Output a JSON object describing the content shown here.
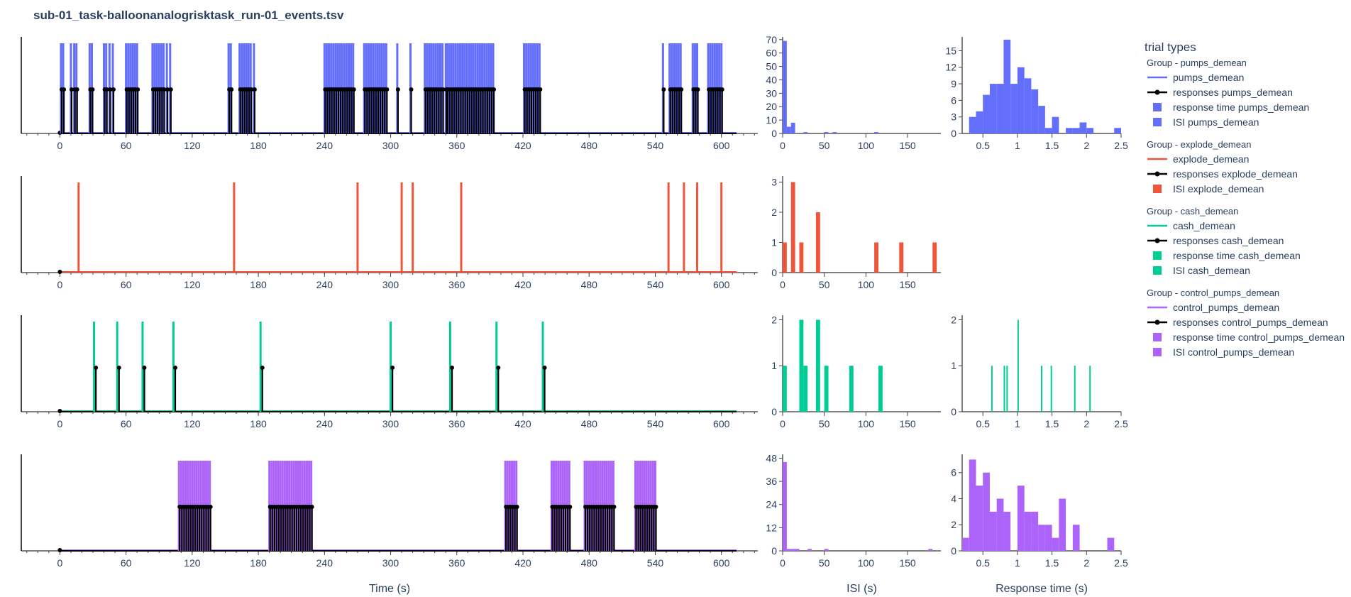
{
  "title": "sub-01_task-balloonanalogrisktask_run-01_events.tsv",
  "legend": {
    "title": "trial types",
    "groups": [
      {
        "label": "Group - pumps_demean",
        "items": [
          {
            "kind": "line",
            "label": "pumps_demean",
            "color": "#636efa"
          },
          {
            "kind": "resp",
            "label": "responses pumps_demean",
            "color": "#000000"
          },
          {
            "kind": "box",
            "label": "response time pumps_demean",
            "color": "#636efa"
          },
          {
            "kind": "box",
            "label": "ISI pumps_demean",
            "color": "#636efa"
          }
        ]
      },
      {
        "label": "Group - explode_demean",
        "items": [
          {
            "kind": "line",
            "label": "explode_demean",
            "color": "#ef553b"
          },
          {
            "kind": "resp",
            "label": "responses explode_demean",
            "color": "#000000"
          },
          {
            "kind": "box",
            "label": "ISI explode_demean",
            "color": "#ef553b"
          }
        ]
      },
      {
        "label": "Group - cash_demean",
        "items": [
          {
            "kind": "line",
            "label": "cash_demean",
            "color": "#00cc96"
          },
          {
            "kind": "resp",
            "label": "responses cash_demean",
            "color": "#000000"
          },
          {
            "kind": "box",
            "label": "response time cash_demean",
            "color": "#00cc96"
          },
          {
            "kind": "box",
            "label": "ISI cash_demean",
            "color": "#00cc96"
          }
        ]
      },
      {
        "label": "Group - control_pumps_demean",
        "items": [
          {
            "kind": "line",
            "label": "control_pumps_demean",
            "color": "#ab63fa"
          },
          {
            "kind": "resp",
            "label": "responses control_pumps_demean",
            "color": "#000000"
          },
          {
            "kind": "box",
            "label": "response time control_pumps_demean",
            "color": "#ab63fa"
          },
          {
            "kind": "box",
            "label": "ISI control_pumps_demean",
            "color": "#ab63fa"
          }
        ]
      }
    ]
  },
  "chart_data": [
    {
      "type": "bar",
      "panel": "timeline",
      "row": 0,
      "name": "pumps_demean",
      "color": "#636efa",
      "xlabel": "",
      "xlim": [
        -35,
        633
      ],
      "xticks": [
        0,
        60,
        120,
        180,
        240,
        300,
        360,
        420,
        480,
        540,
        600
      ],
      "onsets": [
        1,
        3,
        10,
        13,
        15,
        27,
        29,
        40,
        42,
        45,
        48,
        60,
        62,
        64,
        66,
        68,
        70,
        84,
        86,
        88,
        90,
        92,
        94,
        97,
        100,
        153,
        155,
        163,
        165,
        167,
        169,
        171,
        173,
        176,
        240,
        242,
        244,
        246,
        248,
        250,
        252,
        254,
        256,
        258,
        260,
        262,
        264,
        266,
        276,
        278,
        280,
        282,
        284,
        286,
        288,
        290,
        292,
        294,
        296,
        306,
        318,
        331,
        333,
        335,
        337,
        339,
        341,
        343,
        345,
        347,
        350,
        351,
        353,
        355,
        357,
        359,
        361,
        363,
        365,
        367,
        369,
        371,
        373,
        375,
        377,
        379,
        381,
        383,
        385,
        387,
        389,
        391,
        393,
        421,
        423,
        425,
        427,
        429,
        431,
        433,
        435,
        547,
        553,
        555,
        557,
        559,
        561,
        563,
        574,
        576,
        578,
        588,
        590,
        592,
        594,
        596,
        598,
        600
      ],
      "responses": [
        1,
        3,
        10,
        13,
        15,
        27,
        29,
        40,
        42,
        45,
        48,
        60,
        62,
        64,
        66,
        68,
        70,
        84,
        86,
        88,
        90,
        92,
        94,
        97,
        100,
        153,
        155,
        163,
        165,
        167,
        169,
        171,
        173,
        176,
        240,
        242,
        244,
        246,
        248,
        250,
        252,
        254,
        256,
        258,
        260,
        262,
        264,
        266,
        276,
        278,
        280,
        282,
        284,
        286,
        288,
        290,
        292,
        294,
        296,
        306,
        318,
        331,
        333,
        335,
        337,
        339,
        341,
        343,
        345,
        347,
        350,
        351,
        353,
        355,
        357,
        359,
        361,
        363,
        365,
        367,
        369,
        371,
        373,
        375,
        377,
        379,
        381,
        383,
        385,
        387,
        389,
        391,
        393,
        421,
        423,
        425,
        427,
        429,
        431,
        433,
        435,
        547,
        553,
        555,
        557,
        559,
        561,
        563,
        574,
        576,
        578,
        588,
        590,
        592,
        594,
        596,
        598,
        600
      ]
    },
    {
      "type": "bar",
      "panel": "timeline",
      "row": 1,
      "name": "explode_demean",
      "color": "#ef553b",
      "xlabel": "",
      "xlim": [
        -35,
        633
      ],
      "xticks": [
        0,
        60,
        120,
        180,
        240,
        300,
        360,
        420,
        480,
        540,
        600
      ],
      "onsets": [
        17,
        158,
        270,
        310,
        320,
        364,
        552,
        566,
        578,
        600
      ],
      "responses": []
    },
    {
      "type": "bar",
      "panel": "timeline",
      "row": 2,
      "name": "cash_demean",
      "color": "#00cc96",
      "xlabel": "",
      "xlim": [
        -35,
        633
      ],
      "xticks": [
        0,
        60,
        120,
        180,
        240,
        300,
        360,
        420,
        480,
        540,
        600
      ],
      "onsets": [
        31,
        52,
        75,
        103,
        182,
        300,
        354,
        396,
        438
      ],
      "responses": [
        32,
        53,
        76,
        104,
        183,
        301,
        355,
        397,
        439
      ]
    },
    {
      "type": "bar",
      "panel": "timeline",
      "row": 3,
      "name": "control_pumps_demean",
      "color": "#ab63fa",
      "xlabel": "Time (s)",
      "xlim": [
        -35,
        633
      ],
      "xticks": [
        0,
        60,
        120,
        180,
        240,
        300,
        360,
        420,
        480,
        540,
        600
      ],
      "onsets": [
        108,
        110,
        112,
        114,
        116,
        118,
        120,
        122,
        124,
        126,
        128,
        130,
        132,
        134,
        136,
        190,
        192,
        194,
        196,
        198,
        200,
        202,
        204,
        206,
        208,
        210,
        212,
        214,
        216,
        218,
        220,
        222,
        224,
        226,
        228,
        404,
        406,
        408,
        410,
        412,
        414,
        446,
        448,
        450,
        452,
        454,
        456,
        458,
        460,
        462,
        476,
        478,
        480,
        482,
        484,
        486,
        488,
        490,
        492,
        494,
        496,
        498,
        500,
        502,
        522,
        524,
        526,
        528,
        530,
        532,
        534,
        536,
        538,
        540
      ],
      "responses": [
        108,
        110,
        112,
        114,
        116,
        118,
        120,
        122,
        124,
        126,
        128,
        130,
        132,
        134,
        136,
        190,
        192,
        194,
        196,
        198,
        200,
        202,
        204,
        206,
        208,
        210,
        212,
        214,
        216,
        218,
        220,
        222,
        224,
        226,
        228,
        404,
        406,
        408,
        410,
        412,
        414,
        446,
        448,
        450,
        452,
        454,
        456,
        458,
        460,
        462,
        476,
        478,
        480,
        482,
        484,
        486,
        488,
        490,
        492,
        494,
        496,
        498,
        500,
        502,
        522,
        524,
        526,
        528,
        530,
        532,
        534,
        536,
        538,
        540
      ]
    },
    {
      "type": "bar",
      "panel": "isi",
      "row": 0,
      "name": "ISI pumps_demean",
      "color": "#636efa",
      "xlabel": "",
      "xlim": [
        0,
        190
      ],
      "xticks": [
        0,
        50,
        100,
        150
      ],
      "ylim": [
        0,
        72
      ],
      "yticks": [
        0,
        10,
        20,
        30,
        40,
        50,
        60,
        70
      ],
      "bins": [
        [
          0,
          5,
          69
        ],
        [
          5,
          10,
          5
        ],
        [
          10,
          15,
          8
        ],
        [
          25,
          30,
          1
        ],
        [
          50,
          55,
          1
        ],
        [
          60,
          65,
          1
        ],
        [
          110,
          115,
          1
        ]
      ]
    },
    {
      "type": "bar",
      "panel": "isi",
      "row": 1,
      "name": "ISI explode_demean",
      "color": "#ef553b",
      "xlabel": "",
      "xlim": [
        0,
        190
      ],
      "xticks": [
        0,
        50,
        100,
        150
      ],
      "ylim": [
        0,
        3.2
      ],
      "yticks": [
        0,
        1,
        2,
        3
      ],
      "bins": [
        [
          0,
          5,
          1
        ],
        [
          10,
          15,
          3
        ],
        [
          20,
          25,
          1
        ],
        [
          40,
          45,
          2
        ],
        [
          110,
          115,
          1
        ],
        [
          140,
          145,
          1
        ],
        [
          180,
          185,
          1
        ]
      ]
    },
    {
      "type": "bar",
      "panel": "isi",
      "row": 2,
      "name": "ISI cash_demean",
      "color": "#00cc96",
      "xlabel": "",
      "xlim": [
        0,
        190
      ],
      "xticks": [
        0,
        50,
        100,
        150
      ],
      "ylim": [
        0,
        2.1
      ],
      "yticks": [
        0,
        1,
        2
      ],
      "bins": [
        [
          0,
          5,
          1
        ],
        [
          20,
          25,
          2
        ],
        [
          25,
          30,
          1
        ],
        [
          40,
          45,
          2
        ],
        [
          50,
          55,
          1
        ],
        [
          80,
          85,
          1
        ],
        [
          115,
          120,
          1
        ]
      ]
    },
    {
      "type": "bar",
      "panel": "isi",
      "row": 3,
      "name": "ISI control_pumps_demean",
      "color": "#ab63fa",
      "xlabel": "ISI (s)",
      "xlim": [
        0,
        190
      ],
      "xticks": [
        0,
        50,
        100,
        150
      ],
      "ylim": [
        0,
        50
      ],
      "yticks": [
        0,
        12,
        24,
        36,
        48
      ],
      "bins": [
        [
          0,
          5,
          46
        ],
        [
          5,
          10,
          1
        ],
        [
          10,
          15,
          1
        ],
        [
          15,
          20,
          1
        ],
        [
          30,
          35,
          1
        ],
        [
          50,
          55,
          1
        ],
        [
          175,
          180,
          1
        ]
      ]
    },
    {
      "type": "bar",
      "panel": "rt",
      "row": 0,
      "name": "response time pumps_demean",
      "color": "#636efa",
      "xlabel": "",
      "xlim": [
        0.2,
        2.5
      ],
      "xticks": [
        0.5,
        1,
        1.5,
        2,
        2.5
      ],
      "ylim": [
        0,
        17.5
      ],
      "yticks": [
        0,
        3,
        6,
        9,
        12,
        15
      ],
      "bins": [
        [
          0.3,
          0.4,
          3
        ],
        [
          0.4,
          0.5,
          4
        ],
        [
          0.5,
          0.6,
          7
        ],
        [
          0.6,
          0.7,
          9
        ],
        [
          0.7,
          0.8,
          9
        ],
        [
          0.8,
          0.9,
          17
        ],
        [
          0.9,
          1.0,
          9
        ],
        [
          1.0,
          1.1,
          12
        ],
        [
          1.1,
          1.2,
          10
        ],
        [
          1.2,
          1.3,
          8
        ],
        [
          1.3,
          1.4,
          5
        ],
        [
          1.4,
          1.5,
          1
        ],
        [
          1.5,
          1.6,
          3
        ],
        [
          1.7,
          1.8,
          1
        ],
        [
          1.8,
          1.9,
          1
        ],
        [
          1.9,
          2.0,
          2
        ],
        [
          2.0,
          2.1,
          1
        ],
        [
          2.4,
          2.5,
          1
        ]
      ]
    },
    {
      "type": "bar",
      "panel": "rt",
      "row": 2,
      "name": "response time cash_demean",
      "color": "#00cc96",
      "xlabel": "",
      "xlim": [
        0.2,
        2.5
      ],
      "xticks": [
        0.5,
        1,
        1.5,
        2,
        2.5
      ],
      "ylim": [
        0,
        2.1
      ],
      "yticks": [
        0,
        1,
        2
      ],
      "bins": [
        [
          0.62,
          0.64,
          1
        ],
        [
          0.8,
          0.82,
          1
        ],
        [
          0.84,
          0.86,
          1
        ],
        [
          1.0,
          1.02,
          2
        ],
        [
          1.34,
          1.36,
          1
        ],
        [
          1.48,
          1.5,
          1
        ],
        [
          1.82,
          1.84,
          1
        ],
        [
          2.04,
          2.06,
          1
        ]
      ]
    },
    {
      "type": "bar",
      "panel": "rt",
      "row": 3,
      "name": "response time control_pumps_demean",
      "color": "#ab63fa",
      "xlabel": "Response time (s)",
      "xlim": [
        0.2,
        2.5
      ],
      "xticks": [
        0.5,
        1,
        1.5,
        2,
        2.5
      ],
      "ylim": [
        0,
        7.4
      ],
      "yticks": [
        0,
        2,
        4,
        6
      ],
      "bins": [
        [
          0.2,
          0.3,
          1
        ],
        [
          0.3,
          0.4,
          7
        ],
        [
          0.4,
          0.5,
          5
        ],
        [
          0.5,
          0.6,
          6
        ],
        [
          0.6,
          0.7,
          3
        ],
        [
          0.7,
          0.8,
          4
        ],
        [
          0.8,
          0.9,
          3
        ],
        [
          1.0,
          1.1,
          5
        ],
        [
          1.1,
          1.2,
          3
        ],
        [
          1.2,
          1.3,
          3
        ],
        [
          1.3,
          1.4,
          2
        ],
        [
          1.4,
          1.5,
          2
        ],
        [
          1.5,
          1.6,
          1
        ],
        [
          1.6,
          1.7,
          4
        ],
        [
          1.8,
          1.9,
          2
        ],
        [
          2.3,
          2.4,
          1
        ]
      ]
    }
  ]
}
